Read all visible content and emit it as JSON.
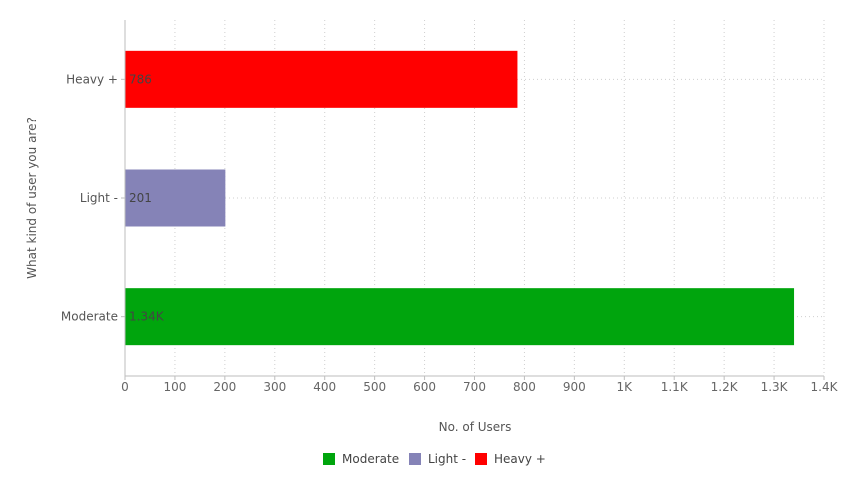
{
  "chart_data": {
    "type": "bar",
    "orientation": "horizontal",
    "categories": [
      "Heavy +",
      "Light -",
      "Moderate"
    ],
    "values": [
      786,
      201,
      1340
    ],
    "data_labels": [
      "786",
      "201",
      "1.34K"
    ],
    "colors": [
      "#ff0000",
      "#8583b7",
      "#00a50d"
    ],
    "xlabel": "No. of Users",
    "ylabel": "What kind of user you are?",
    "xlim": [
      0,
      1400
    ],
    "x_ticks": [
      0,
      100,
      200,
      300,
      400,
      500,
      600,
      700,
      800,
      900,
      1000,
      1100,
      1200,
      1300,
      1400
    ],
    "x_tick_labels": [
      "0",
      "100",
      "200",
      "300",
      "400",
      "500",
      "600",
      "700",
      "800",
      "900",
      "1K",
      "1.1K",
      "1.2K",
      "1.3K",
      "1.4K"
    ],
    "grid": true,
    "legend_position": "bottom-center",
    "legend": [
      {
        "label": "Moderate",
        "color": "#00a50d"
      },
      {
        "label": "Light -",
        "color": "#8583b7"
      },
      {
        "label": "Heavy +",
        "color": "#ff0000"
      }
    ]
  }
}
